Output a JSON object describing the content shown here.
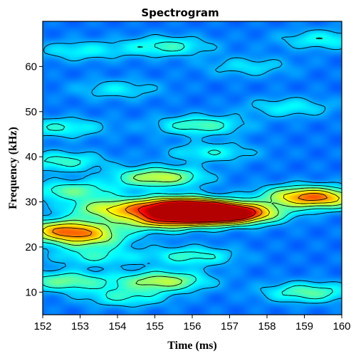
{
  "chart_data": {
    "type": "heatmap",
    "title": "Spectrogram",
    "xlabel": "Time (ms)",
    "ylabel": "Frequency (kHz)",
    "xlim": [
      152,
      160
    ],
    "ylim": [
      5,
      70
    ],
    "x_ticks": [
      152,
      153,
      154,
      155,
      156,
      157,
      158,
      159,
      160
    ],
    "x_tick_labels": [
      "152",
      "153",
      "154",
      "155",
      "156",
      "157",
      "158",
      "159",
      "160"
    ],
    "y_ticks": [
      10,
      20,
      30,
      40,
      50,
      60
    ],
    "y_tick_labels": [
      "10",
      "20",
      "30",
      "40",
      "50",
      "60"
    ],
    "colormap": "jet",
    "background_color": "#0f3fb0",
    "contour_color": "#000000",
    "hotspots": [
      {
        "time_ms": 156.5,
        "freq_khz": 27.5,
        "intensity": 1.0
      },
      {
        "time_ms": 155.6,
        "freq_khz": 29.0,
        "intensity": 0.85
      },
      {
        "time_ms": 155.2,
        "freq_khz": 26.0,
        "intensity": 0.55
      },
      {
        "time_ms": 157.3,
        "freq_khz": 27.5,
        "intensity": 0.5
      },
      {
        "time_ms": 152.6,
        "freq_khz": 24.0,
        "intensity": 0.55
      },
      {
        "time_ms": 153.1,
        "freq_khz": 22.0,
        "intensity": 0.4
      },
      {
        "time_ms": 155.1,
        "freq_khz": 35.5,
        "intensity": 0.45
      },
      {
        "time_ms": 153.8,
        "freq_khz": 28.5,
        "intensity": 0.42
      },
      {
        "time_ms": 152.8,
        "freq_khz": 32.5,
        "intensity": 0.3
      },
      {
        "time_ms": 159.0,
        "freq_khz": 31.5,
        "intensity": 0.45
      },
      {
        "time_ms": 159.5,
        "freq_khz": 30.5,
        "intensity": 0.35
      },
      {
        "time_ms": 155.2,
        "freq_khz": 12.5,
        "intensity": 0.42
      },
      {
        "time_ms": 152.6,
        "freq_khz": 12.5,
        "intensity": 0.32
      },
      {
        "time_ms": 159.1,
        "freq_khz": 10.0,
        "intensity": 0.3
      },
      {
        "time_ms": 156.0,
        "freq_khz": 18.0,
        "intensity": 0.25
      },
      {
        "time_ms": 153.4,
        "freq_khz": 18.0,
        "intensity": 0.22
      },
      {
        "time_ms": 156.2,
        "freq_khz": 47.0,
        "intensity": 0.28
      },
      {
        "time_ms": 152.5,
        "freq_khz": 46.5,
        "intensity": 0.22
      },
      {
        "time_ms": 156.5,
        "freq_khz": 41.0,
        "intensity": 0.2
      },
      {
        "time_ms": 152.5,
        "freq_khz": 39.0,
        "intensity": 0.25
      },
      {
        "time_ms": 155.3,
        "freq_khz": 64.5,
        "intensity": 0.25
      },
      {
        "time_ms": 153.0,
        "freq_khz": 63.5,
        "intensity": 0.18
      },
      {
        "time_ms": 159.5,
        "freq_khz": 66.0,
        "intensity": 0.2
      },
      {
        "time_ms": 158.6,
        "freq_khz": 51.0,
        "intensity": 0.18
      },
      {
        "time_ms": 154.0,
        "freq_khz": 55.0,
        "intensity": 0.16
      },
      {
        "time_ms": 157.5,
        "freq_khz": 60.0,
        "intensity": 0.15
      },
      {
        "time_ms": 154.2,
        "freq_khz": 9.0,
        "intensity": 0.22
      }
    ]
  }
}
